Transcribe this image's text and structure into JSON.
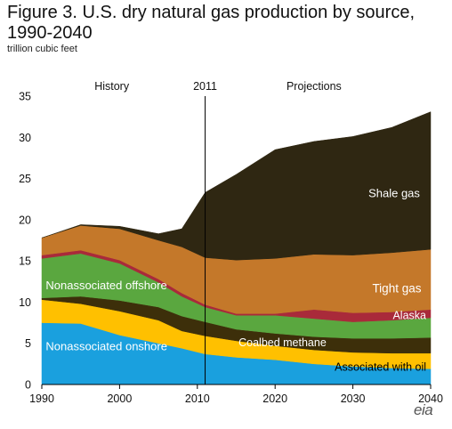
{
  "chart_data": {
    "type": "area",
    "title": "Figure 3. U.S. dry natural gas production by source, 1990-2040",
    "subtitle": "trillion cubic feet",
    "x": [
      1990,
      1995,
      2000,
      2005,
      2008,
      2011,
      2015,
      2020,
      2025,
      2030,
      2035,
      2040
    ],
    "xticks": [
      1990,
      2000,
      2010,
      2020,
      2030,
      2040
    ],
    "ylim": [
      0,
      35
    ],
    "yticks": [
      0,
      5,
      10,
      15,
      20,
      25,
      30,
      35
    ],
    "divider_year": 2011,
    "period_labels": {
      "history": "History",
      "divider": "2011",
      "projections": "Projections"
    },
    "series": [
      {
        "name": "Nonassociated onshore",
        "color": "#1aa0de",
        "values": [
          7.5,
          7.4,
          6.0,
          5.0,
          4.4,
          3.7,
          3.3,
          3.0,
          2.5,
          2.2,
          2.0,
          1.9
        ]
      },
      {
        "name": "Associated with oil",
        "color": "#ffc000",
        "values": [
          2.8,
          2.4,
          2.9,
          2.8,
          2.1,
          2.2,
          2.0,
          1.7,
          1.7,
          1.7,
          1.8,
          1.9
        ]
      },
      {
        "name": "Coalbed methane",
        "color": "#3d2f0a",
        "values": [
          0.2,
          0.9,
          1.3,
          1.6,
          1.8,
          1.7,
          1.4,
          1.5,
          1.6,
          1.7,
          1.8,
          1.9
        ]
      },
      {
        "name": "Nonassociated offshore",
        "color": "#5aa73f",
        "values": [
          4.8,
          5.2,
          4.5,
          3.0,
          2.4,
          1.8,
          1.7,
          2.2,
          2.2,
          2.0,
          2.2,
          2.4
        ]
      },
      {
        "name": "Alaska",
        "color": "#a92a3a",
        "values": [
          0.4,
          0.4,
          0.4,
          0.4,
          0.4,
          0.3,
          0.2,
          0.2,
          1.1,
          1.1,
          1.0,
          1.0
        ]
      },
      {
        "name": "Tight gas",
        "color": "#c4782a",
        "values": [
          2.1,
          3.0,
          3.8,
          4.7,
          5.6,
          5.7,
          6.5,
          6.7,
          6.7,
          7.0,
          7.2,
          7.3
        ]
      },
      {
        "name": "Shale gas",
        "color": "#2f2712",
        "values": [
          0.0,
          0.1,
          0.3,
          0.8,
          2.2,
          7.9,
          10.4,
          13.2,
          13.7,
          14.4,
          15.2,
          16.7
        ]
      }
    ],
    "grid": false,
    "legend": "inline labels"
  },
  "labels": [
    {
      "series": "Shale gas",
      "text": "Shale gas",
      "color": "#ffffff"
    },
    {
      "series": "Tight gas",
      "text": "Tight gas",
      "color": "#ffffff"
    },
    {
      "series": "Nonassociated offshore",
      "text": "Nonassociated offshore",
      "color": "#ffffff"
    },
    {
      "series": "Alaska",
      "text": "Alaska",
      "color": "#ffffff"
    },
    {
      "series": "Coalbed methane",
      "text": "Coalbed methane",
      "color": "#ffffff"
    },
    {
      "series": "Associated with oil",
      "text": "Associated with oil",
      "color": "#000000"
    },
    {
      "series": "Nonassociated onshore",
      "text": "Nonassociated onshore",
      "color": "#ffffff"
    }
  ],
  "logo_text": "eia"
}
